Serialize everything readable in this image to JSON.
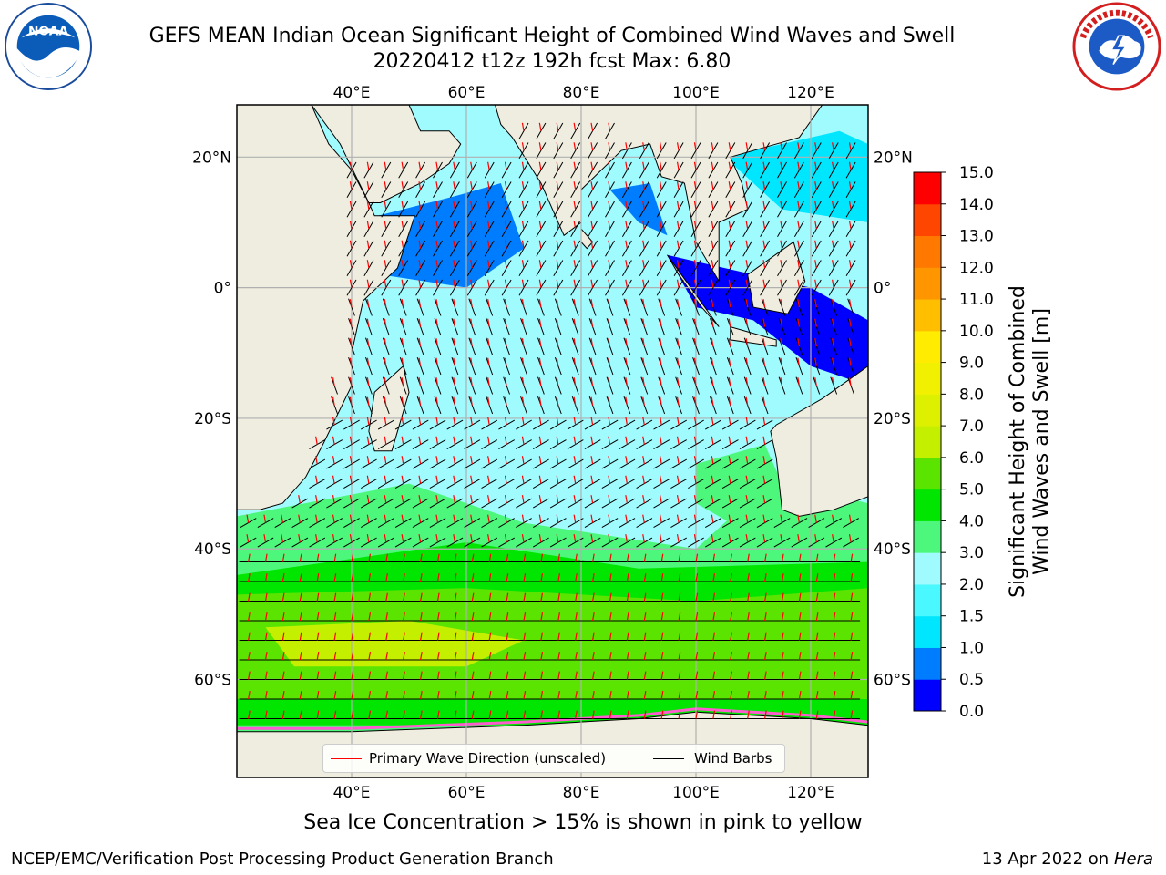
{
  "header": {
    "title_line1": "GEFS MEAN Indian Ocean Significant Height of Combined Wind Waves and Swell",
    "title_line2": "20220412 t12z 192h fcst   Max: 6.80"
  },
  "logos": {
    "noaa": {
      "text": "NOAA",
      "ring_text": "NATIONAL OCEANIC AND ATMOSPHERIC ADMINISTRATION · U.S. DEPARTMENT OF COMMERCE"
    },
    "nws": {
      "ring_text": "NATIONAL WEATHER SERVICE"
    }
  },
  "map": {
    "lon_labels": [
      "40°E",
      "60°E",
      "80°E",
      "100°E",
      "120°E"
    ],
    "lat_labels": [
      "20°N",
      "0°",
      "20°S",
      "40°S",
      "60°S"
    ],
    "lon_range": [
      20,
      130
    ],
    "lat_range": [
      -75,
      28
    ],
    "land_color": "#efeddf",
    "gridline_color": "#b0b0b0"
  },
  "legend": {
    "wave_dir_label": "Primary Wave Direction (unscaled)",
    "wind_barbs_label": "Wind Barbs",
    "wave_dir_color": "#ff0000",
    "wind_barbs_color": "#000000"
  },
  "colorbar": {
    "title_line1": "Significant Height of Combined",
    "title_line2": "Wind Waves and Swell [m]",
    "labels": [
      "15.0",
      "14.0",
      "13.0",
      "12.0",
      "11.0",
      "10.0",
      "9.0",
      "8.0",
      "7.0",
      "6.0",
      "5.0",
      "4.0",
      "3.0",
      "2.0",
      "1.5",
      "1.0",
      "0.5",
      "0.0"
    ],
    "bins": [
      {
        "lo": 0.0,
        "hi": 0.5,
        "color": "#0000ff"
      },
      {
        "lo": 0.5,
        "hi": 1.0,
        "color": "#007dff"
      },
      {
        "lo": 1.0,
        "hi": 1.5,
        "color": "#00e6ff"
      },
      {
        "lo": 1.5,
        "hi": 2.0,
        "color": "#4af8ff"
      },
      {
        "lo": 2.0,
        "hi": 3.0,
        "color": "#a0fbff"
      },
      {
        "lo": 3.0,
        "hi": 4.0,
        "color": "#4df77c"
      },
      {
        "lo": 4.0,
        "hi": 5.0,
        "color": "#00e600"
      },
      {
        "lo": 5.0,
        "hi": 6.0,
        "color": "#5ae400"
      },
      {
        "lo": 6.0,
        "hi": 7.0,
        "color": "#c4f000"
      },
      {
        "lo": 7.0,
        "hi": 8.0,
        "color": "#dcf000"
      },
      {
        "lo": 8.0,
        "hi": 9.0,
        "color": "#f0f000"
      },
      {
        "lo": 9.0,
        "hi": 10.0,
        "color": "#ffec00"
      },
      {
        "lo": 10.0,
        "hi": 11.0,
        "color": "#ffbe00"
      },
      {
        "lo": 11.0,
        "hi": 12.0,
        "color": "#ff9600"
      },
      {
        "lo": 12.0,
        "hi": 13.0,
        "color": "#ff7800"
      },
      {
        "lo": 13.0,
        "hi": 14.0,
        "color": "#ff4600"
      },
      {
        "lo": 14.0,
        "hi": 15.0,
        "color": "#ff0000"
      }
    ]
  },
  "caption": "Sea Ice Concentration > 15% is shown in pink to yellow",
  "footer": {
    "left": "NCEP/EMC/Verification Post Processing Product Generation Branch",
    "date": "13 Apr 2022 on ",
    "host": "Hera"
  }
}
